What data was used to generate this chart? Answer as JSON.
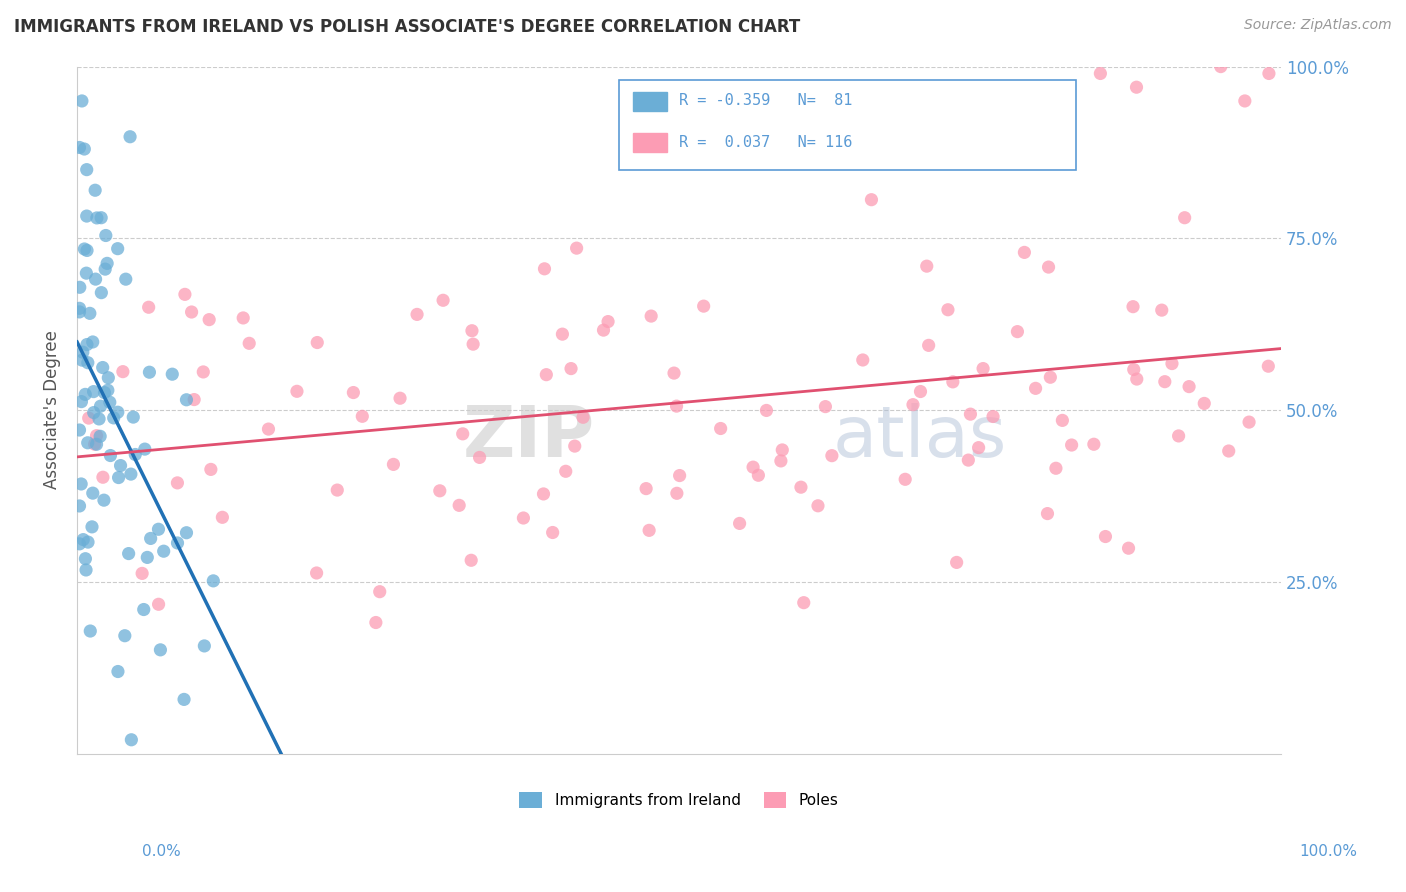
{
  "title": "IMMIGRANTS FROM IRELAND VS POLISH ASSOCIATE'S DEGREE CORRELATION CHART",
  "source": "Source: ZipAtlas.com",
  "ylabel": "Associate's Degree",
  "legend_ireland": "Immigrants from Ireland",
  "legend_poles": "Poles",
  "R_ireland": -0.359,
  "N_ireland": 81,
  "R_poles": 0.037,
  "N_poles": 116,
  "ireland_color": "#6baed6",
  "poles_color": "#fc9cb4",
  "ireland_line_color": "#2171b5",
  "poles_line_color": "#e05070",
  "legend_edge_color": "#5b9bd5",
  "tick_color": "#5b9bd5",
  "grid_color": "#cccccc",
  "title_color": "#333333",
  "source_color": "#999999",
  "watermark_zip_color": "#cccccc",
  "watermark_atlas_color": "#aabbd4",
  "ylabel_color": "#555555"
}
